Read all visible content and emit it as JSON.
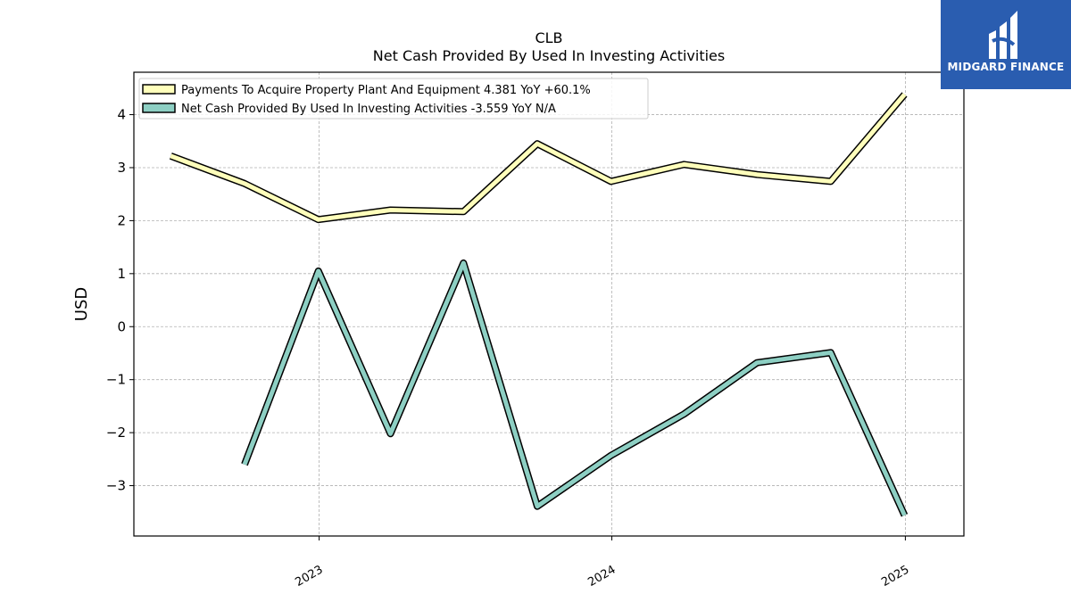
{
  "chart_data": {
    "type": "line",
    "title": "CLB",
    "subtitle": "Net Cash Provided By Used In Investing Activities",
    "ylabel": "USD",
    "xlabel": "",
    "ylim": [
      -3.95,
      4.8
    ],
    "yticks": [
      -3,
      -2,
      -1,
      0,
      1,
      2,
      3,
      4
    ],
    "ytick_labels": [
      "−3",
      "−2",
      "−1",
      "0",
      "1",
      "2",
      "3",
      "4"
    ],
    "xlim": [
      "2022-05-15",
      "2025-03-15"
    ],
    "xticks": [
      "2023-01-01",
      "2024-01-01",
      "2025-01-01"
    ],
    "xtick_labels": [
      "2023",
      "2024",
      "2025"
    ],
    "grid": true,
    "legend_position": "top-left",
    "series": [
      {
        "name": "Payments To Acquire Property Plant And Equipment",
        "legend": "Payments To Acquire Property Plant And Equipment  4.381 YoY +60.1%",
        "color": "#ffffbb",
        "x": [
          "2022-06-30",
          "2022-09-30",
          "2022-12-31",
          "2023-03-31",
          "2023-06-30",
          "2023-09-30",
          "2023-12-31",
          "2024-03-31",
          "2024-06-30",
          "2024-09-30",
          "2024-12-31"
        ],
        "values": [
          3.22,
          2.7,
          2.02,
          2.2,
          2.17,
          3.45,
          2.74,
          3.06,
          2.87,
          2.74,
          4.381
        ]
      },
      {
        "name": "Net Cash Provided By Used In Investing Activities",
        "legend": "Net Cash Provided By Used In Investing Activities  -3.559 YoY N/A",
        "color": "#8dcfc3",
        "x": [
          "2022-09-30",
          "2022-12-31",
          "2023-03-31",
          "2023-06-30",
          "2023-09-30",
          "2023-12-31",
          "2024-03-31",
          "2024-06-30",
          "2024-09-30",
          "2024-12-31"
        ],
        "values": [
          -2.6,
          1.05,
          -2.02,
          1.2,
          -3.39,
          -2.43,
          -1.65,
          -0.68,
          -0.49,
          -3.559
        ]
      }
    ]
  },
  "logo": {
    "text": "MIDGARD FINANCE",
    "bg_color": "#2a5db0"
  }
}
